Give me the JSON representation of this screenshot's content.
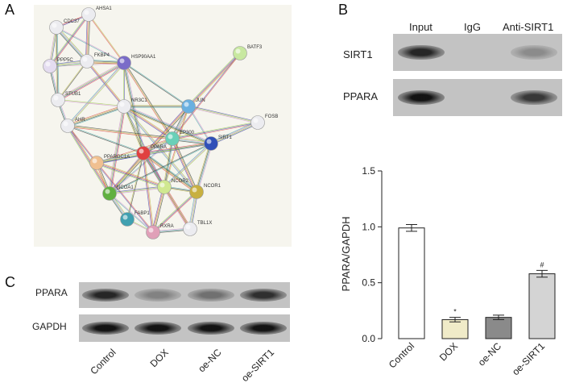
{
  "panels": {
    "a": "A",
    "b": "B",
    "c": "C"
  },
  "network": {
    "nodes": [
      {
        "id": "CDC37",
        "color": "#ececf0"
      },
      {
        "id": "AHSA1",
        "color": "#ececf0"
      },
      {
        "id": "PPP5C",
        "color": "#e4dcf0"
      },
      {
        "id": "FKBP4",
        "color": "#ececf0"
      },
      {
        "id": "HSP90AA1",
        "color": "#7a6cc8"
      },
      {
        "id": "BATF3",
        "color": "#c8e8a0"
      },
      {
        "id": "STUB1",
        "color": "#ececf0"
      },
      {
        "id": "NR3C1",
        "color": "#ececf0"
      },
      {
        "id": "JUN",
        "color": "#6ab0e0"
      },
      {
        "id": "AHR",
        "color": "#ececf0"
      },
      {
        "id": "FOSB",
        "color": "#ececf0"
      },
      {
        "id": "EP300",
        "color": "#6ad0b8"
      },
      {
        "id": "PPARA",
        "color": "#e04040"
      },
      {
        "id": "SIRT1",
        "color": "#3050b8"
      },
      {
        "id": "PPARGC1A",
        "color": "#f0c090"
      },
      {
        "id": "NCOA1",
        "color": "#60b040"
      },
      {
        "id": "NCOR2",
        "color": "#d0e890"
      },
      {
        "id": "NCOR1",
        "color": "#c8b040"
      },
      {
        "id": "FABP1",
        "color": "#40a0b0"
      },
      {
        "id": "RXRA",
        "color": "#e0a0b8"
      },
      {
        "id": "TBL1X",
        "color": "#ececf0"
      }
    ]
  },
  "blotB": {
    "lanes": [
      "Input",
      "IgG",
      "Anti-SIRT1"
    ],
    "rows": [
      {
        "label": "SIRT1",
        "intensity": [
          0.85,
          0.0,
          0.3
        ]
      },
      {
        "label": "PPARA",
        "intensity": [
          0.95,
          0.0,
          0.75
        ]
      }
    ]
  },
  "blotC": {
    "rows": [
      {
        "label": "PPARA",
        "intensity": [
          0.85,
          0.35,
          0.45,
          0.8
        ]
      },
      {
        "label": "GAPDH",
        "intensity": [
          0.95,
          0.95,
          0.95,
          0.95
        ]
      }
    ],
    "lanes": [
      "Control",
      "DOX",
      "oe-NC",
      "oe-SIRT1"
    ]
  },
  "chart_data": {
    "type": "bar",
    "categories": [
      "Control",
      "DOX",
      "oe-NC",
      "oe-SIRT1"
    ],
    "values": [
      0.99,
      0.17,
      0.19,
      0.58
    ],
    "errors": [
      0.03,
      0.02,
      0.02,
      0.03
    ],
    "annotations": [
      "",
      "*",
      "",
      "#"
    ],
    "colors": [
      "#ffffff",
      "#f0ebc8",
      "#8a8a8a",
      "#d4d4d4"
    ],
    "ylabel": "PPARA/GAPDH",
    "xlabel": "",
    "ylim": [
      0.0,
      1.5
    ],
    "yticks": [
      "0.0",
      "0.5",
      "1.0",
      "1.5"
    ],
    "ytick_values": [
      0.0,
      0.5,
      1.0,
      1.5
    ]
  }
}
